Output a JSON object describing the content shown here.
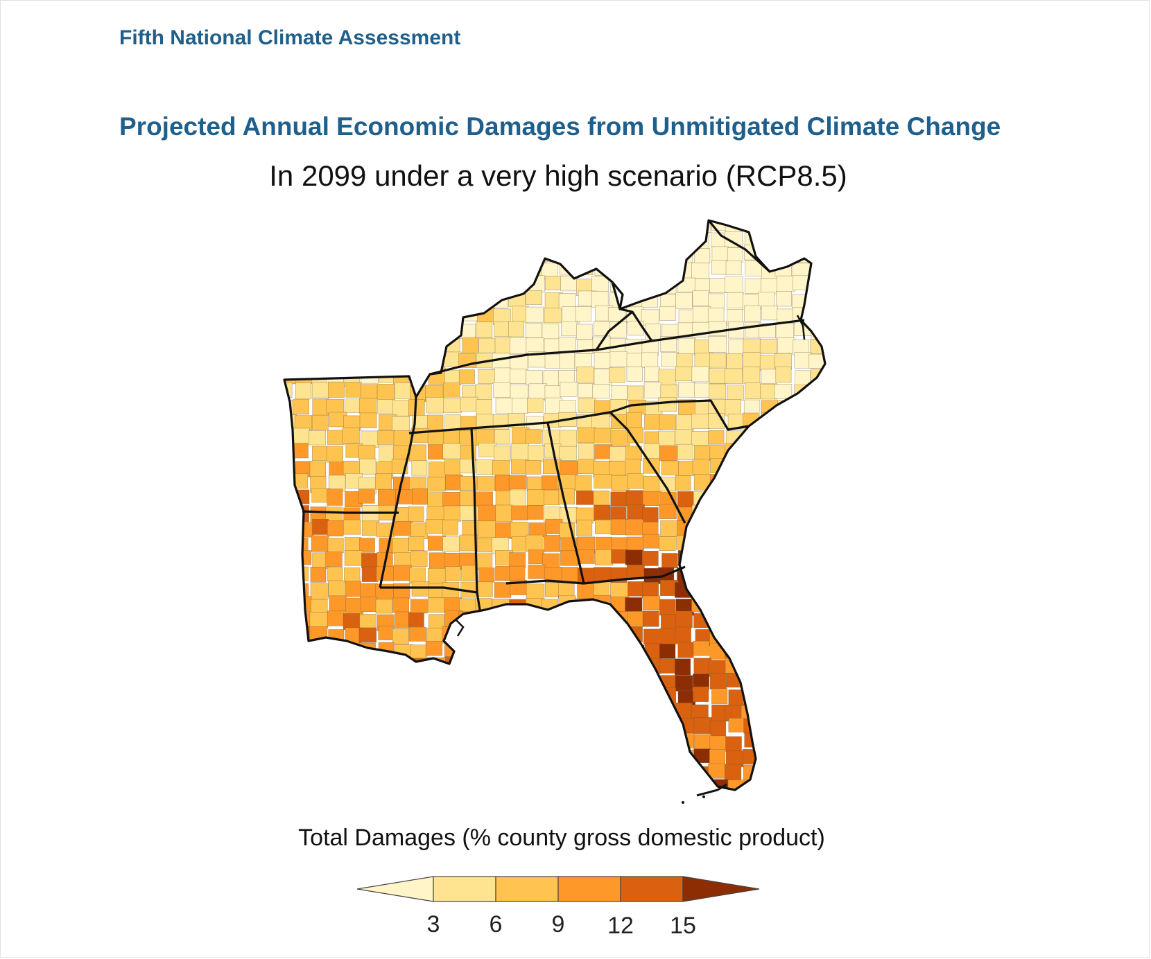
{
  "header": {
    "org": "Fifth National Climate Assessment",
    "title": "Projected Annual Economic Damages from Unmitigated Climate Change",
    "subtitle": "In 2099 under a very high scenario (RCP8.5)"
  },
  "legend": {
    "title": "Total Damages (% county gross domestic product)",
    "ticks": [
      "3",
      "6",
      "9",
      "12",
      "15"
    ],
    "colors": [
      "#fff5c9",
      "#fee391",
      "#fec44f",
      "#fe9929",
      "#d9610f",
      "#8c2d04"
    ]
  },
  "chart_data": {
    "type": "choropleth",
    "title": "Projected Annual Economic Damages from Unmitigated Climate Change",
    "subtitle": "In 2099 under a very high scenario (RCP8.5)",
    "region": "Southeast United States (counties)",
    "variable": "Total Damages (% county gross domestic product)",
    "bins": [
      {
        "range": "<3",
        "color": "#fff5c9"
      },
      {
        "range": "3-6",
        "color": "#fee391"
      },
      {
        "range": "6-9",
        "color": "#fec44f"
      },
      {
        "range": "9-12",
        "color": "#fe9929"
      },
      {
        "range": "12-15",
        "color": "#d9610f"
      },
      {
        "range": ">15",
        "color": "#8c2d04"
      }
    ]
  }
}
